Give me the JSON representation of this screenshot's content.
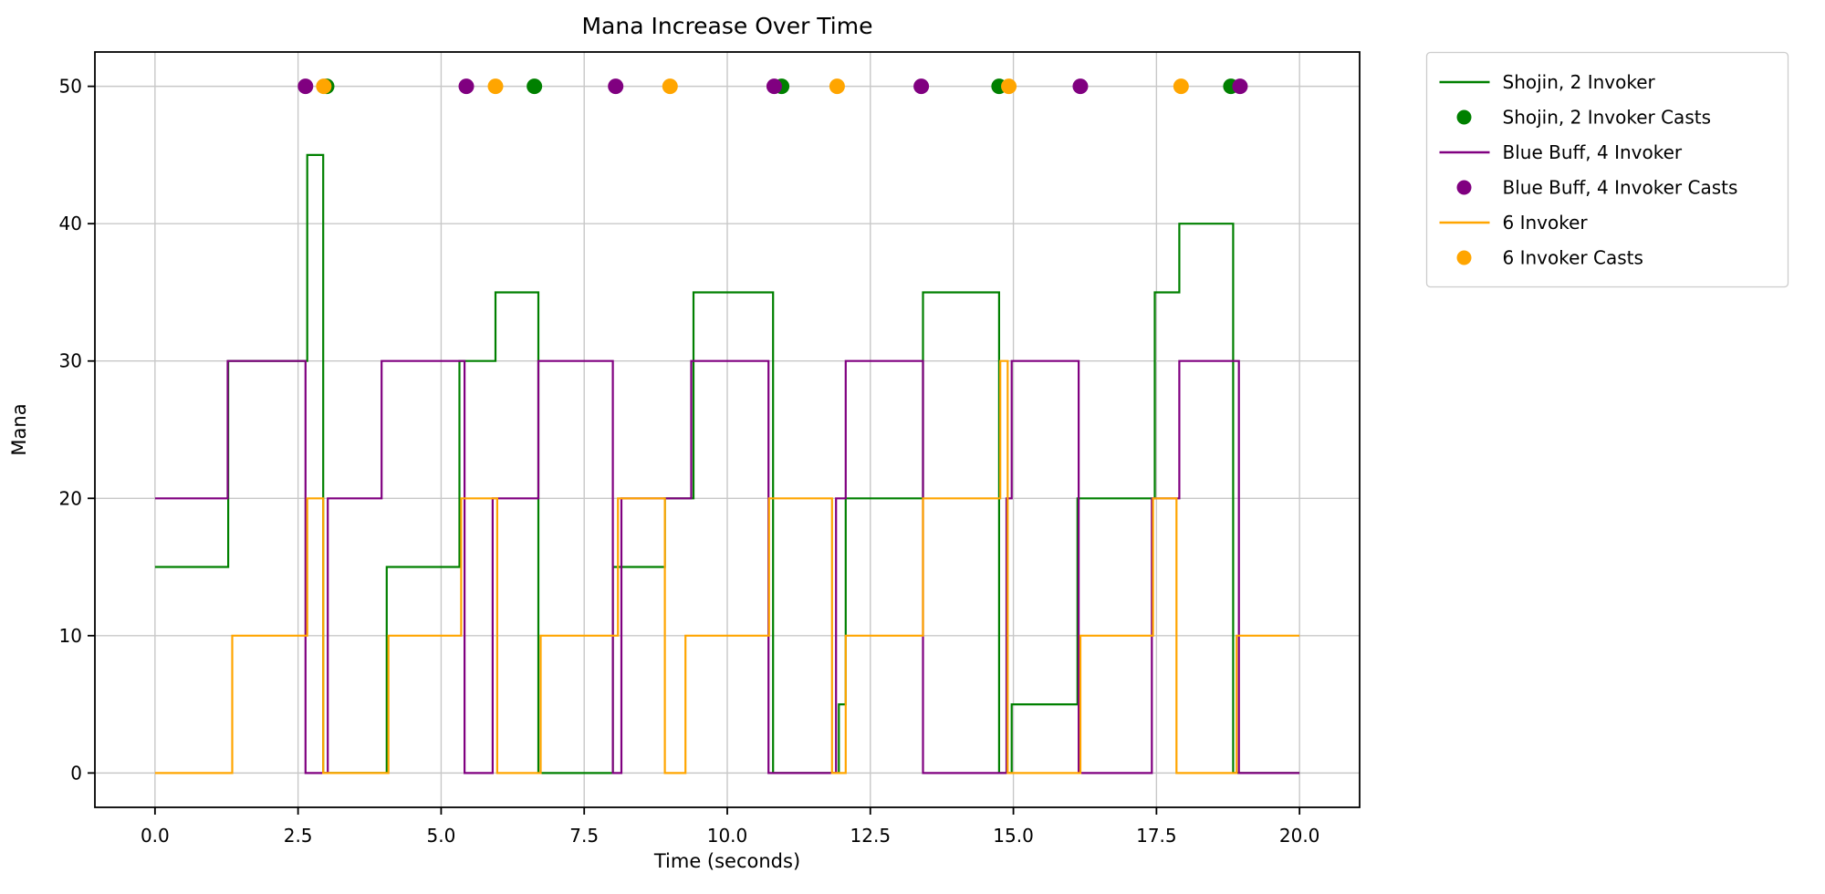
{
  "figure": {
    "title": "Mana Increase Over Time",
    "xlabel": "Time (seconds)",
    "ylabel": "Mana"
  },
  "chart_data": {
    "type": "line",
    "subtype": "step-post",
    "title": "Mana Increase Over Time",
    "xlabel": "Time (seconds)",
    "ylabel": "Mana",
    "grid": true,
    "legend_position": "outside upper right",
    "xlim": [
      -1.05,
      21.05
    ],
    "ylim": [
      -2.5,
      52.5
    ],
    "xticks": [
      {
        "v": 0,
        "label": "0.0"
      },
      {
        "v": 2.5,
        "label": "2.5"
      },
      {
        "v": 5,
        "label": "5.0"
      },
      {
        "v": 7.5,
        "label": "7.5"
      },
      {
        "v": 10,
        "label": "10.0"
      },
      {
        "v": 12.5,
        "label": "12.5"
      },
      {
        "v": 15,
        "label": "15.0"
      },
      {
        "v": 17.5,
        "label": "17.5"
      },
      {
        "v": 20,
        "label": "20.0"
      }
    ],
    "yticks": [
      {
        "v": 0,
        "label": "0"
      },
      {
        "v": 10,
        "label": "10"
      },
      {
        "v": 20,
        "label": "20"
      },
      {
        "v": 30,
        "label": "30"
      },
      {
        "v": 40,
        "label": "40"
      },
      {
        "v": 50,
        "label": "50"
      }
    ],
    "series": [
      {
        "name": "Shojin, 2 Invoker",
        "color": "#008000",
        "points": [
          [
            0,
            15
          ],
          [
            1.28,
            30
          ],
          [
            2.66,
            45
          ],
          [
            2.94,
            0
          ],
          [
            4.05,
            15
          ],
          [
            5.32,
            30
          ],
          [
            5.95,
            35
          ],
          [
            6.7,
            0
          ],
          [
            8.0,
            15
          ],
          [
            8.91,
            20
          ],
          [
            9.41,
            35
          ],
          [
            10.8,
            0
          ],
          [
            11.95,
            5
          ],
          [
            12.07,
            20
          ],
          [
            13.42,
            35
          ],
          [
            14.75,
            0
          ],
          [
            14.97,
            5
          ],
          [
            16.12,
            20
          ],
          [
            17.47,
            35
          ],
          [
            17.9,
            40
          ],
          [
            18.84,
            0
          ],
          [
            20,
            0
          ]
        ]
      },
      {
        "name": "Blue Buff, 4 Invoker",
        "color": "#800080",
        "points": [
          [
            0,
            20
          ],
          [
            1.27,
            30
          ],
          [
            2.63,
            0
          ],
          [
            3.02,
            20
          ],
          [
            3.96,
            30
          ],
          [
            5.41,
            0
          ],
          [
            5.9,
            20
          ],
          [
            6.7,
            30
          ],
          [
            8.0,
            0
          ],
          [
            8.15,
            20
          ],
          [
            9.37,
            30
          ],
          [
            10.72,
            0
          ],
          [
            11.9,
            20
          ],
          [
            12.07,
            30
          ],
          [
            13.42,
            0
          ],
          [
            14.88,
            20
          ],
          [
            14.97,
            30
          ],
          [
            16.14,
            0
          ],
          [
            17.42,
            20
          ],
          [
            17.9,
            30
          ],
          [
            18.94,
            0
          ],
          [
            20,
            0
          ]
        ]
      },
      {
        "name": "6 Invoker",
        "color": "#ffa500",
        "points": [
          [
            0,
            0
          ],
          [
            1.35,
            10
          ],
          [
            2.66,
            20
          ],
          [
            2.94,
            0
          ],
          [
            4.08,
            10
          ],
          [
            5.35,
            20
          ],
          [
            5.98,
            0
          ],
          [
            6.74,
            10
          ],
          [
            8.09,
            20
          ],
          [
            8.91,
            0
          ],
          [
            9.27,
            10
          ],
          [
            10.73,
            20
          ],
          [
            11.83,
            0
          ],
          [
            12.07,
            10
          ],
          [
            13.42,
            20
          ],
          [
            14.77,
            30
          ],
          [
            14.9,
            0
          ],
          [
            16.17,
            10
          ],
          [
            17.44,
            20
          ],
          [
            17.85,
            0
          ],
          [
            18.9,
            10
          ],
          [
            20,
            10
          ]
        ]
      }
    ],
    "casts": [
      {
        "name": "Shojin, 2 Invoker Casts",
        "color": "#008000",
        "y": 50,
        "times": [
          3.0,
          6.63,
          10.95,
          14.75,
          18.8
        ]
      },
      {
        "name": "Blue Buff, 4 Invoker Casts",
        "color": "#800080",
        "y": 50,
        "times": [
          2.63,
          5.44,
          8.05,
          10.82,
          13.39,
          16.17,
          18.96
        ]
      },
      {
        "name": "6 Invoker Casts",
        "color": "#ffa500",
        "y": 50,
        "times": [
          2.95,
          5.95,
          9.0,
          11.92,
          14.92,
          17.93
        ]
      }
    ],
    "legend": [
      {
        "type": "line",
        "color": "#008000",
        "label": "Shojin, 2 Invoker"
      },
      {
        "type": "dot",
        "color": "#008000",
        "label": "Shojin, 2 Invoker Casts"
      },
      {
        "type": "line",
        "color": "#800080",
        "label": "Blue Buff, 4 Invoker"
      },
      {
        "type": "dot",
        "color": "#800080",
        "label": "Blue Buff, 4 Invoker Casts"
      },
      {
        "type": "line",
        "color": "#ffa500",
        "label": "6 Invoker"
      },
      {
        "type": "dot",
        "color": "#ffa500",
        "label": "6 Invoker Casts"
      }
    ],
    "style": {
      "grid_color": "#c8c8c8",
      "spine_color": "#000000",
      "legend_edge_color": "#cccccc",
      "background": "#ffffff"
    }
  }
}
